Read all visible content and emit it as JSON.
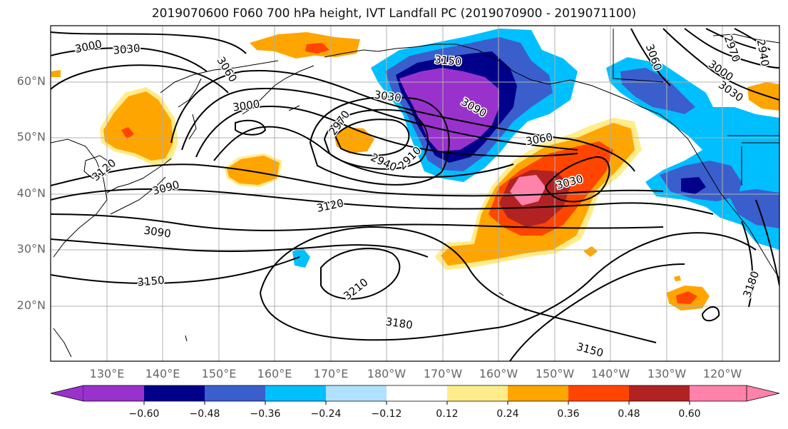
{
  "title": "2019070600 F060 700 hPa height, IVT Landfall PC (2019070900 - 2019071100)",
  "lat_labels": [
    "60°N",
    "50°N",
    "40°N",
    "30°N",
    "20°N"
  ],
  "lon_labels": [
    "130°E",
    "140°E",
    "150°E",
    "160°E",
    "170°E",
    "180°W",
    "170°W",
    "160°W",
    "150°W",
    "140°W",
    "130°W",
    "120°W"
  ],
  "contour_labels": [
    "3000",
    "3030",
    "3060",
    "3000",
    "2970",
    "2940",
    "2910",
    "3030",
    "3090",
    "3150",
    "3060",
    "3030",
    "3120",
    "3090",
    "3090",
    "3120",
    "3150",
    "3210",
    "3180",
    "3150",
    "2940",
    "2970",
    "3000",
    "3030",
    "3060",
    "3180"
  ],
  "colorbar": {
    "ticks": [
      "−0.60",
      "−0.48",
      "−0.36",
      "−0.24",
      "−0.12",
      "0.12",
      "0.24",
      "0.36",
      "0.48",
      "0.60"
    ],
    "colors": [
      "#9932cc",
      "#00008b",
      "#3a5fcd",
      "#00bfff",
      "#b0e2ff",
      "#ffffff",
      "#ffec8b",
      "#ffa500",
      "#ff4500",
      "#b22222",
      "#ff82ab",
      "#ff82ab"
    ]
  },
  "shading_colors": {
    "purple": "#9932cc",
    "navy": "#00008b",
    "blue": "#3a5fcd",
    "cyan": "#00bfff",
    "lightblue": "#b0e2ff",
    "yellow": "#ffec8b",
    "orange": "#ffa500",
    "redorange": "#ff4500",
    "darkred": "#b22222",
    "pink": "#ff82ab"
  }
}
